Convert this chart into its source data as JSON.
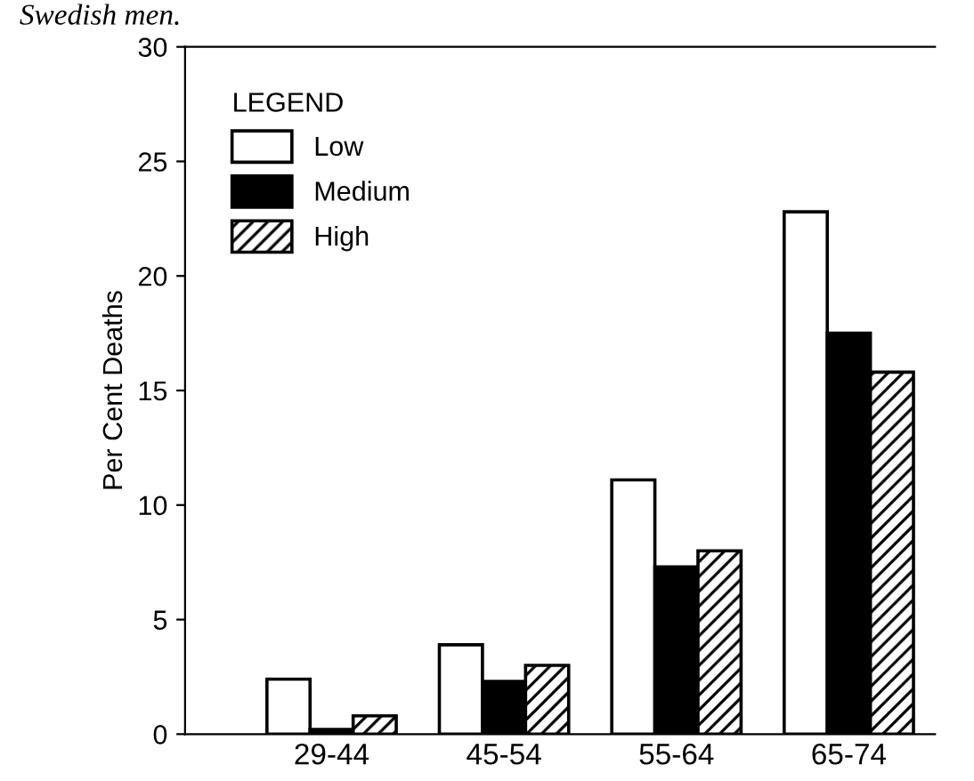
{
  "chart_data": {
    "type": "bar",
    "title": "Swedish men.",
    "ylabel": "Per Cent Deaths",
    "legend_title": "LEGEND",
    "categories": [
      "29-44",
      "45-54",
      "55-64",
      "65-74"
    ],
    "series": [
      {
        "name": "Low",
        "color": "#ffffff",
        "values": [
          2.4,
          3.9,
          11.1,
          22.8
        ]
      },
      {
        "name": "Medium",
        "color": "#000000",
        "values": [
          0.2,
          2.3,
          7.3,
          17.5
        ]
      },
      {
        "name": "High",
        "color": "#000000",
        "values": [
          0.8,
          3.0,
          8.0,
          15.8
        ]
      }
    ],
    "ylim": [
      0,
      30
    ],
    "yticks": [
      0,
      5,
      10,
      15,
      20,
      25,
      30
    ],
    "grid": false,
    "legend": "top left"
  }
}
